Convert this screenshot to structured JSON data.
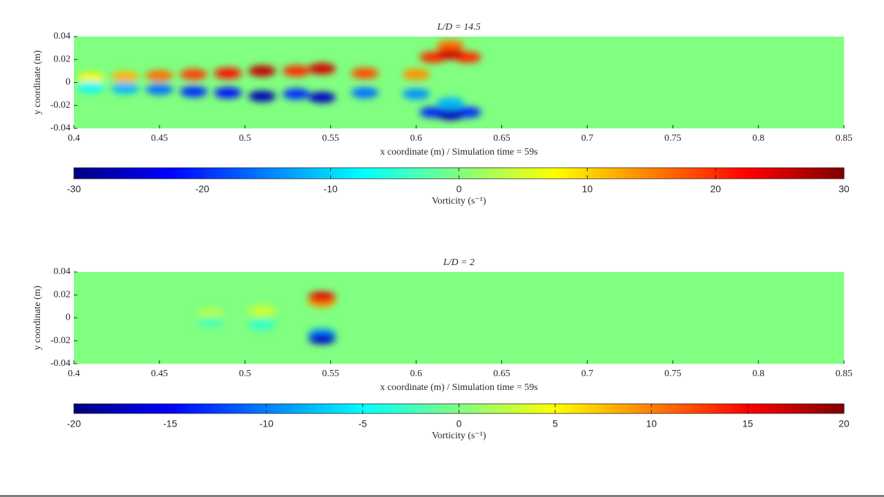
{
  "chart_data": [
    {
      "type": "field",
      "title": "L/D = 14.5",
      "xlabel": "x coordinate (m) / Simulation time = 59s",
      "ylabel": "y coordinate (m)",
      "xlim": [
        0.4,
        0.85
      ],
      "xticks": [
        0.4,
        0.45,
        0.5,
        0.55,
        0.6,
        0.65,
        0.7,
        0.75,
        0.8,
        0.85
      ],
      "ylim": [
        -0.04,
        0.04
      ],
      "yticks": [
        0.04,
        0.02,
        0,
        -0.02,
        -0.04
      ],
      "x": [
        0.41,
        0.43,
        0.45,
        0.47,
        0.49,
        0.51,
        0.53,
        0.545,
        0.57,
        0.6,
        0.61,
        0.62,
        0.63,
        0.62,
        0.41,
        0.43,
        0.45,
        0.47,
        0.49,
        0.51,
        0.53,
        0.545,
        0.57,
        0.6,
        0.61,
        0.62,
        0.63,
        0.62
      ],
      "y": [
        0.004,
        0.005,
        0.006,
        0.007,
        0.008,
        0.01,
        0.01,
        0.012,
        0.008,
        0.007,
        0.022,
        0.025,
        0.022,
        0.032,
        -0.004,
        -0.005,
        -0.006,
        -0.008,
        -0.009,
        -0.012,
        -0.01,
        -0.013,
        -0.009,
        -0.01,
        -0.026,
        -0.028,
        -0.026,
        -0.018
      ],
      "values": [
        8,
        12,
        16,
        19,
        22,
        26,
        20,
        25,
        18,
        14,
        20,
        25,
        20,
        16,
        -8,
        -12,
        -16,
        -20,
        -22,
        -27,
        -20,
        -26,
        -16,
        -14,
        -20,
        -26,
        -20,
        -12
      ],
      "colorbar": {
        "label": "Vorticity (s⁻¹)",
        "colormap": "jet",
        "lim": [
          -30,
          30
        ],
        "ticks": [
          -30,
          -20,
          -10,
          0,
          10,
          20,
          30
        ]
      }
    },
    {
      "type": "field",
      "title": "L/D = 2",
      "xlabel": "x coordinate (m) / Simulation time = 59s",
      "ylabel": "y coordinate (m)",
      "xlim": [
        0.4,
        0.85
      ],
      "xticks": [
        0.4,
        0.45,
        0.5,
        0.55,
        0.6,
        0.65,
        0.7,
        0.75,
        0.8,
        0.85
      ],
      "ylim": [
        -0.04,
        0.04
      ],
      "yticks": [
        0.04,
        0.02,
        0,
        -0.02,
        -0.04
      ],
      "x": [
        0.48,
        0.51,
        0.545,
        0.545,
        0.48,
        0.51,
        0.545,
        0.545
      ],
      "y": [
        0.004,
        0.006,
        0.018,
        0.014,
        -0.004,
        -0.006,
        -0.018,
        -0.014
      ],
      "values": [
        2,
        3,
        16,
        9,
        -2,
        -3,
        -17,
        -9
      ],
      "colorbar": {
        "label": "Vorticity (s⁻¹)",
        "colormap": "jet",
        "lim": [
          -20,
          20
        ],
        "ticks": [
          -20,
          -15,
          -10,
          -5,
          0,
          5,
          10,
          15,
          20
        ]
      }
    }
  ]
}
